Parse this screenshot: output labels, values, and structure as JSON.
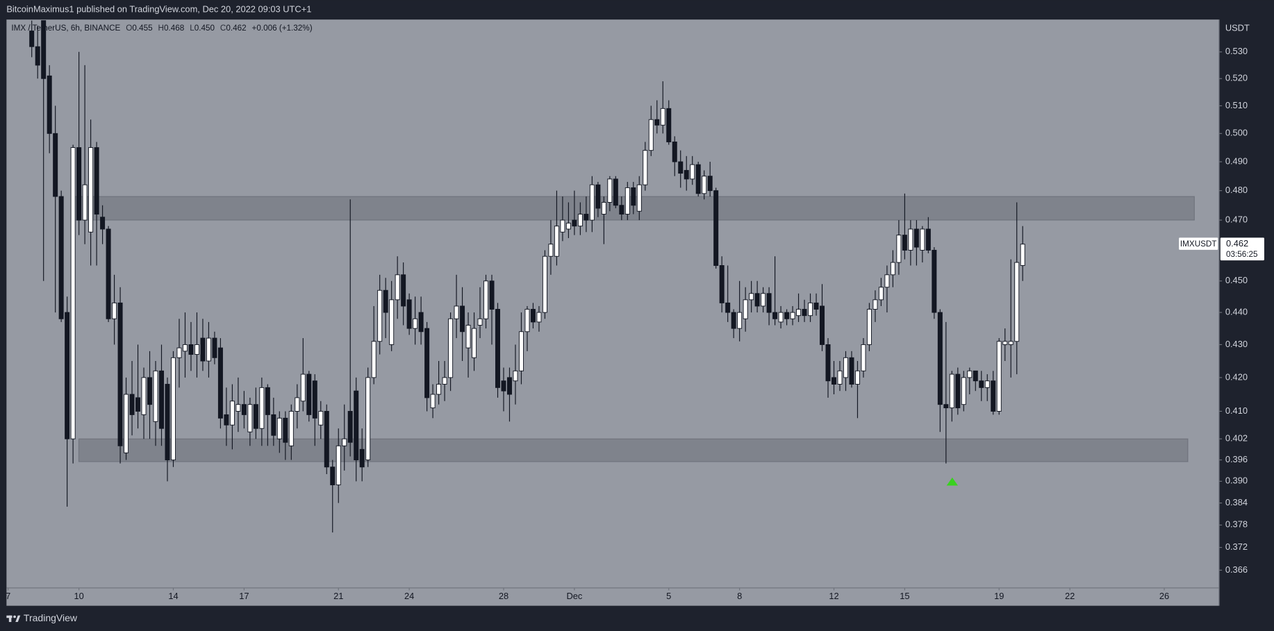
{
  "header": "BitcoinMaximus1 published on TradingView.com, Dec 20, 2022 09:03 UTC+1",
  "footer": "TradingView",
  "chart_data": {
    "type": "candlestick",
    "legend": {
      "symbol": "IMX / TetherUS, 6h, BINANCE",
      "items": [
        {
          "label": "O",
          "value": "0.455"
        },
        {
          "label": "H",
          "value": "0.468"
        },
        {
          "label": "L",
          "value": "0.450"
        },
        {
          "label": "C",
          "value": "0.462"
        }
      ],
      "change": "+0.006 (+1.32%)"
    },
    "y_unit": "USDT",
    "last_price": 0.462,
    "countdown": "03:56:25",
    "log_scale": true,
    "up_color": "#ffffff",
    "down_color": "#131722",
    "xlim": [
      6.93,
      58.31
    ],
    "xticks": [
      7,
      10,
      14,
      17,
      21,
      24,
      28,
      {
        "value": 31,
        "label": "Dec"
      },
      {
        "value": 35,
        "label": "5"
      },
      {
        "value": 38,
        "label": "8"
      },
      {
        "value": 42,
        "label": "12"
      },
      {
        "value": 45,
        "label": "15"
      },
      {
        "value": 49,
        "label": "19"
      },
      {
        "value": 52,
        "label": "22"
      },
      {
        "value": 56,
        "label": "26"
      }
    ],
    "ylim": [
      0.3614,
      0.5424
    ],
    "yticks": [
      {
        "value": 0.53,
        "label": "0.530"
      },
      {
        "value": 0.52,
        "label": "0.520"
      },
      {
        "value": 0.51,
        "label": "0.510"
      },
      {
        "value": 0.5,
        "label": "0.500"
      },
      {
        "value": 0.49,
        "label": "0.490"
      },
      {
        "value": 0.48,
        "label": "0.480"
      },
      {
        "value": 0.47,
        "label": "0.470"
      },
      {
        "value": 0.45,
        "label": "0.450"
      },
      {
        "value": 0.44,
        "label": "0.440"
      },
      {
        "value": 0.43,
        "label": "0.430"
      },
      {
        "value": 0.42,
        "label": "0.420"
      },
      {
        "value": 0.41,
        "label": "0.410"
      },
      0.402,
      0.396,
      {
        "value": 0.39,
        "label": "0.390"
      },
      0.384,
      0.378,
      0.372,
      0.366
    ],
    "zones": [
      {
        "top": 0.478,
        "bottom": 0.47
      },
      {
        "top": 0.402,
        "bottom": 0.3955
      }
    ],
    "series": [
      {
        "name": "IMXUSDT",
        "x": [
          8,
          8.25,
          8.5,
          8.75,
          9,
          9.25,
          9.5,
          9.75,
          10,
          10.25,
          10.5,
          10.75,
          11,
          11.25,
          11.5,
          11.75,
          12,
          12.25,
          12.5,
          12.75,
          13,
          13.25,
          13.5,
          13.75,
          14,
          14.25,
          14.5,
          14.75,
          15,
          15.25,
          15.5,
          15.75,
          16,
          16.25,
          16.5,
          16.75,
          17,
          17.25,
          17.5,
          17.75,
          18,
          18.25,
          18.5,
          18.75,
          19,
          19.25,
          19.5,
          19.75,
          20,
          20.25,
          20.5,
          20.75,
          21,
          21.25,
          21.5,
          21.75,
          22,
          22.25,
          22.5,
          22.75,
          23,
          23.25,
          23.5,
          23.75,
          24,
          24.25,
          24.5,
          24.75,
          25,
          25.25,
          25.5,
          25.75,
          26,
          26.25,
          26.5,
          26.75,
          27,
          27.25,
          27.5,
          27.75,
          28,
          28.25,
          28.5,
          28.75,
          29,
          29.25,
          29.5,
          29.75,
          30,
          30.25,
          30.5,
          30.75,
          31,
          31.25,
          31.5,
          31.75,
          32,
          32.25,
          32.5,
          32.75,
          33,
          33.25,
          33.5,
          33.75,
          34,
          34.25,
          34.5,
          34.75,
          35,
          35.25,
          35.5,
          35.75,
          36,
          36.25,
          36.5,
          36.75,
          37,
          37.25,
          37.5,
          37.75,
          38,
          38.25,
          38.5,
          38.75,
          39,
          39.25,
          39.5,
          39.75,
          40,
          40.25,
          40.5,
          40.75,
          41,
          41.25,
          41.5,
          41.75,
          42,
          42.25,
          42.5,
          42.75,
          43,
          43.25,
          43.5,
          43.75,
          44,
          44.25,
          44.5,
          44.75,
          45,
          45.25,
          45.5,
          45.75,
          46,
          46.25,
          46.5,
          46.75,
          47,
          47.25,
          47.5,
          47.75,
          48,
          48.25,
          48.5,
          48.75,
          49,
          49.25,
          49.5,
          49.75,
          50
        ],
        "open": [
          0.538,
          0.532,
          0.542,
          0.521,
          0.5,
          0.478,
          0.44,
          0.402,
          0.495,
          0.47,
          0.466,
          0.495,
          0.471,
          0.467,
          0.438,
          0.443,
          0.398,
          0.415,
          0.414,
          0.409,
          0.42,
          0.407,
          0.422,
          0.418,
          0.396,
          0.426,
          0.428,
          0.43,
          0.427,
          0.432,
          0.425,
          0.432,
          0.429,
          0.409,
          0.406,
          0.41,
          0.412,
          0.404,
          0.412,
          0.405,
          0.417,
          0.409,
          0.402,
          0.408,
          0.4,
          0.41,
          0.413,
          0.421,
          0.419,
          0.406,
          0.41,
          0.394,
          0.389,
          0.4,
          0.41,
          0.416,
          0.399,
          0.396,
          0.42,
          0.431,
          0.447,
          0.43,
          0.444,
          0.452,
          0.444,
          0.435,
          0.44,
          0.435,
          0.411,
          0.415,
          0.418,
          0.42,
          0.438,
          0.442,
          0.429,
          0.426,
          0.436,
          0.438,
          0.45,
          0.441,
          0.419,
          0.42,
          0.419,
          0.422,
          0.434,
          0.441,
          0.437,
          0.44,
          0.458,
          0.458,
          0.466,
          0.467,
          0.47,
          0.468,
          0.472,
          0.47,
          0.482,
          0.472,
          0.476,
          0.484,
          0.475,
          0.472,
          0.481,
          0.473,
          0.482,
          0.494,
          0.505,
          0.503,
          0.509,
          0.497,
          0.49,
          0.487,
          0.484,
          0.489,
          0.479,
          0.485,
          0.48,
          0.455,
          0.443,
          0.44,
          0.435,
          0.438,
          0.444,
          0.446,
          0.442,
          0.446,
          0.44,
          0.437,
          0.44,
          0.438,
          0.439,
          0.441,
          0.439,
          0.443,
          0.442,
          0.43,
          0.42,
          0.418,
          0.42,
          0.426,
          0.418,
          0.422,
          0.43,
          0.441,
          0.444,
          0.448,
          0.452,
          0.456,
          0.465,
          0.46,
          0.467,
          0.46,
          0.467,
          0.46,
          0.44,
          0.412,
          0.411,
          0.421,
          0.412,
          0.42,
          0.422,
          0.419,
          0.417,
          0.419,
          0.41,
          0.43,
          0.43,
          0.431,
          0.455
        ],
        "high": [
          0.542,
          0.54,
          0.542,
          0.525,
          0.51,
          0.48,
          0.445,
          0.496,
          0.53,
          0.525,
          0.505,
          0.497,
          0.475,
          0.468,
          0.452,
          0.448,
          0.42,
          0.425,
          0.43,
          0.423,
          0.428,
          0.425,
          0.43,
          0.42,
          0.428,
          0.438,
          0.44,
          0.437,
          0.44,
          0.438,
          0.437,
          0.434,
          0.432,
          0.417,
          0.418,
          0.42,
          0.416,
          0.414,
          0.417,
          0.42,
          0.418,
          0.414,
          0.41,
          0.41,
          0.412,
          0.418,
          0.432,
          0.422,
          0.421,
          0.413,
          0.412,
          0.396,
          0.405,
          0.412,
          0.477,
          0.42,
          0.405,
          0.423,
          0.442,
          0.452,
          0.451,
          0.45,
          0.458,
          0.456,
          0.446,
          0.445,
          0.445,
          0.437,
          0.418,
          0.425,
          0.425,
          0.44,
          0.452,
          0.448,
          0.44,
          0.44,
          0.448,
          0.452,
          0.452,
          0.443,
          0.423,
          0.423,
          0.43,
          0.44,
          0.442,
          0.443,
          0.442,
          0.46,
          0.47,
          0.48,
          0.478,
          0.476,
          0.48,
          0.476,
          0.478,
          0.485,
          0.483,
          0.478,
          0.485,
          0.485,
          0.478,
          0.483,
          0.483,
          0.485,
          0.497,
          0.51,
          0.512,
          0.519,
          0.512,
          0.499,
          0.494,
          0.492,
          0.492,
          0.49,
          0.487,
          0.49,
          0.481,
          0.458,
          0.455,
          0.441,
          0.45,
          0.448,
          0.45,
          0.45,
          0.448,
          0.448,
          0.458,
          0.442,
          0.441,
          0.442,
          0.446,
          0.444,
          0.446,
          0.446,
          0.449,
          0.432,
          0.425,
          0.425,
          0.428,
          0.428,
          0.425,
          0.432,
          0.443,
          0.447,
          0.451,
          0.455,
          0.46,
          0.47,
          0.479,
          0.47,
          0.47,
          0.468,
          0.471,
          0.461,
          0.441,
          0.437,
          0.422,
          0.423,
          0.422,
          0.423,
          0.422,
          0.422,
          0.421,
          0.422,
          0.432,
          0.435,
          0.457,
          0.476,
          0.468
        ],
        "low": [
          0.528,
          0.52,
          0.45,
          0.493,
          0.44,
          0.437,
          0.383,
          0.395,
          0.465,
          0.462,
          0.455,
          0.455,
          0.462,
          0.437,
          0.43,
          0.395,
          0.396,
          0.403,
          0.405,
          0.402,
          0.402,
          0.4,
          0.4,
          0.39,
          0.394,
          0.417,
          0.42,
          0.422,
          0.42,
          0.422,
          0.42,
          0.424,
          0.405,
          0.4,
          0.399,
          0.404,
          0.405,
          0.4,
          0.402,
          0.4,
          0.4,
          0.4,
          0.398,
          0.396,
          0.396,
          0.405,
          0.41,
          0.407,
          0.4,
          0.402,
          0.392,
          0.376,
          0.384,
          0.393,
          0.397,
          0.39,
          0.39,
          0.394,
          0.418,
          0.427,
          0.432,
          0.428,
          0.438,
          0.436,
          0.433,
          0.43,
          0.43,
          0.41,
          0.408,
          0.412,
          0.413,
          0.416,
          0.432,
          0.425,
          0.42,
          0.422,
          0.432,
          0.435,
          0.43,
          0.414,
          0.41,
          0.407,
          0.412,
          0.418,
          0.428,
          0.435,
          0.434,
          0.438,
          0.452,
          0.455,
          0.463,
          0.464,
          0.465,
          0.465,
          0.466,
          0.466,
          0.471,
          0.462,
          0.473,
          0.474,
          0.47,
          0.47,
          0.472,
          0.47,
          0.48,
          0.492,
          0.5,
          0.5,
          0.496,
          0.485,
          0.481,
          0.48,
          0.482,
          0.478,
          0.477,
          0.478,
          0.454,
          0.44,
          0.437,
          0.432,
          0.431,
          0.434,
          0.44,
          0.44,
          0.44,
          0.436,
          0.436,
          0.435,
          0.436,
          0.436,
          0.437,
          0.437,
          0.437,
          0.439,
          0.428,
          0.414,
          0.415,
          0.416,
          0.416,
          0.417,
          0.408,
          0.42,
          0.428,
          0.437,
          0.442,
          0.44,
          0.448,
          0.452,
          0.457,
          0.455,
          0.455,
          0.456,
          0.459,
          0.438,
          0.404,
          0.395,
          0.407,
          0.409,
          0.41,
          0.415,
          0.416,
          0.413,
          0.413,
          0.409,
          0.409,
          0.425,
          0.42,
          0.421,
          0.45
        ],
        "close": [
          0.532,
          0.525,
          0.52,
          0.5,
          0.478,
          0.438,
          0.402,
          0.495,
          0.47,
          0.482,
          0.495,
          0.472,
          0.467,
          0.438,
          0.443,
          0.4,
          0.415,
          0.409,
          0.41,
          0.42,
          0.412,
          0.422,
          0.405,
          0.396,
          0.426,
          0.429,
          0.43,
          0.427,
          0.43,
          0.425,
          0.432,
          0.426,
          0.408,
          0.406,
          0.413,
          0.412,
          0.409,
          0.412,
          0.405,
          0.417,
          0.409,
          0.403,
          0.408,
          0.401,
          0.41,
          0.414,
          0.421,
          0.409,
          0.408,
          0.41,
          0.394,
          0.389,
          0.4,
          0.402,
          0.401,
          0.396,
          0.394,
          0.42,
          0.431,
          0.447,
          0.44,
          0.444,
          0.452,
          0.442,
          0.435,
          0.438,
          0.434,
          0.414,
          0.415,
          0.418,
          0.42,
          0.438,
          0.442,
          0.434,
          0.436,
          0.435,
          0.438,
          0.45,
          0.441,
          0.417,
          0.416,
          0.415,
          0.422,
          0.434,
          0.441,
          0.437,
          0.44,
          0.458,
          0.462,
          0.468,
          0.47,
          0.469,
          0.468,
          0.472,
          0.47,
          0.482,
          0.474,
          0.476,
          0.484,
          0.475,
          0.472,
          0.481,
          0.475,
          0.482,
          0.494,
          0.505,
          0.503,
          0.509,
          0.497,
          0.49,
          0.486,
          0.484,
          0.489,
          0.479,
          0.485,
          0.48,
          0.455,
          0.443,
          0.44,
          0.435,
          0.44,
          0.444,
          0.446,
          0.442,
          0.446,
          0.44,
          0.438,
          0.44,
          0.438,
          0.44,
          0.441,
          0.439,
          0.443,
          0.441,
          0.43,
          0.419,
          0.418,
          0.422,
          0.426,
          0.418,
          0.422,
          0.43,
          0.441,
          0.444,
          0.448,
          0.452,
          0.456,
          0.465,
          0.46,
          0.467,
          0.461,
          0.467,
          0.46,
          0.44,
          0.412,
          0.411,
          0.421,
          0.411,
          0.42,
          0.422,
          0.419,
          0.417,
          0.419,
          0.41,
          0.431,
          0.431,
          0.431,
          0.456,
          0.462
        ]
      }
    ]
  }
}
